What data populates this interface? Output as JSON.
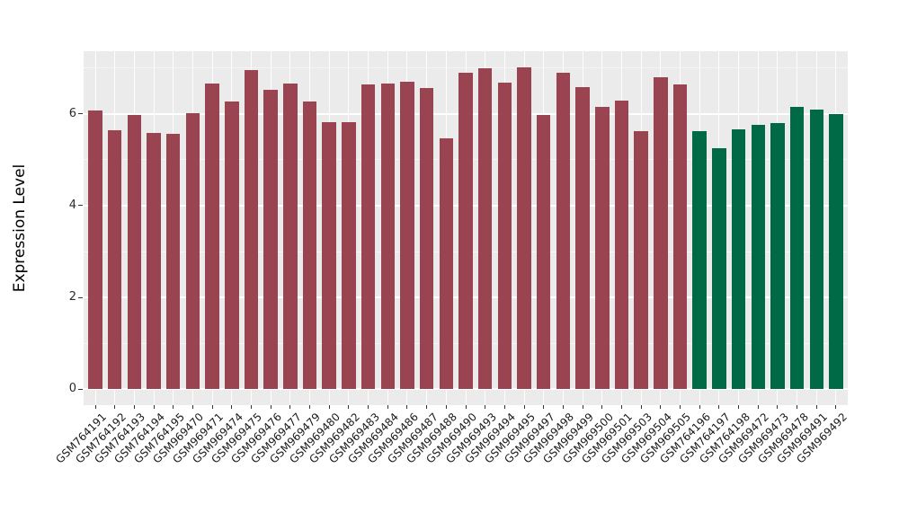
{
  "chart": {
    "ylabel": "Expression Level"
  },
  "chart_data": {
    "type": "bar",
    "title": "",
    "xlabel": "",
    "ylabel": "Expression Level",
    "categories": [
      "GSM764191",
      "GSM764192",
      "GSM764193",
      "GSM764194",
      "GSM764195",
      "GSM969470",
      "GSM969471",
      "GSM969474",
      "GSM969475",
      "GSM969476",
      "GSM969477",
      "GSM969479",
      "GSM969480",
      "GSM969482",
      "GSM969483",
      "GSM969484",
      "GSM969486",
      "GSM969487",
      "GSM969488",
      "GSM969490",
      "GSM969493",
      "GSM969494",
      "GSM969495",
      "GSM969497",
      "GSM969498",
      "GSM969499",
      "GSM969500",
      "GSM969501",
      "GSM969503",
      "GSM969504",
      "GSM969505",
      "GSM764196",
      "GSM764197",
      "GSM764198",
      "GSM969472",
      "GSM969473",
      "GSM969478",
      "GSM969491",
      "GSM969492"
    ],
    "values": [
      6.08,
      5.64,
      5.98,
      5.58,
      5.57,
      6.01,
      6.66,
      6.27,
      6.95,
      6.52,
      6.66,
      6.27,
      5.82,
      5.82,
      6.65,
      6.67,
      6.7,
      6.56,
      5.46,
      6.9,
      7.0,
      6.68,
      7.02,
      5.97,
      6.89,
      6.58,
      6.16,
      6.29,
      5.62,
      6.8,
      6.65,
      5.62,
      5.26,
      5.66,
      5.76,
      5.8,
      6.16,
      6.1,
      5.99
    ],
    "color_groups": [
      {
        "color": "#9A4452",
        "start": 0,
        "end": 30
      },
      {
        "color": "#006946",
        "start": 31,
        "end": 38
      }
    ],
    "ylim": [
      0,
      7.37
    ],
    "yticks": [
      0,
      2,
      4,
      6
    ],
    "yminor": [
      1,
      3,
      5,
      7
    ],
    "grid": "on",
    "legend": "none",
    "panel_bg": "#EBEBEB",
    "grid_color": "#FFFFFF",
    "tick_color": "#333333"
  }
}
